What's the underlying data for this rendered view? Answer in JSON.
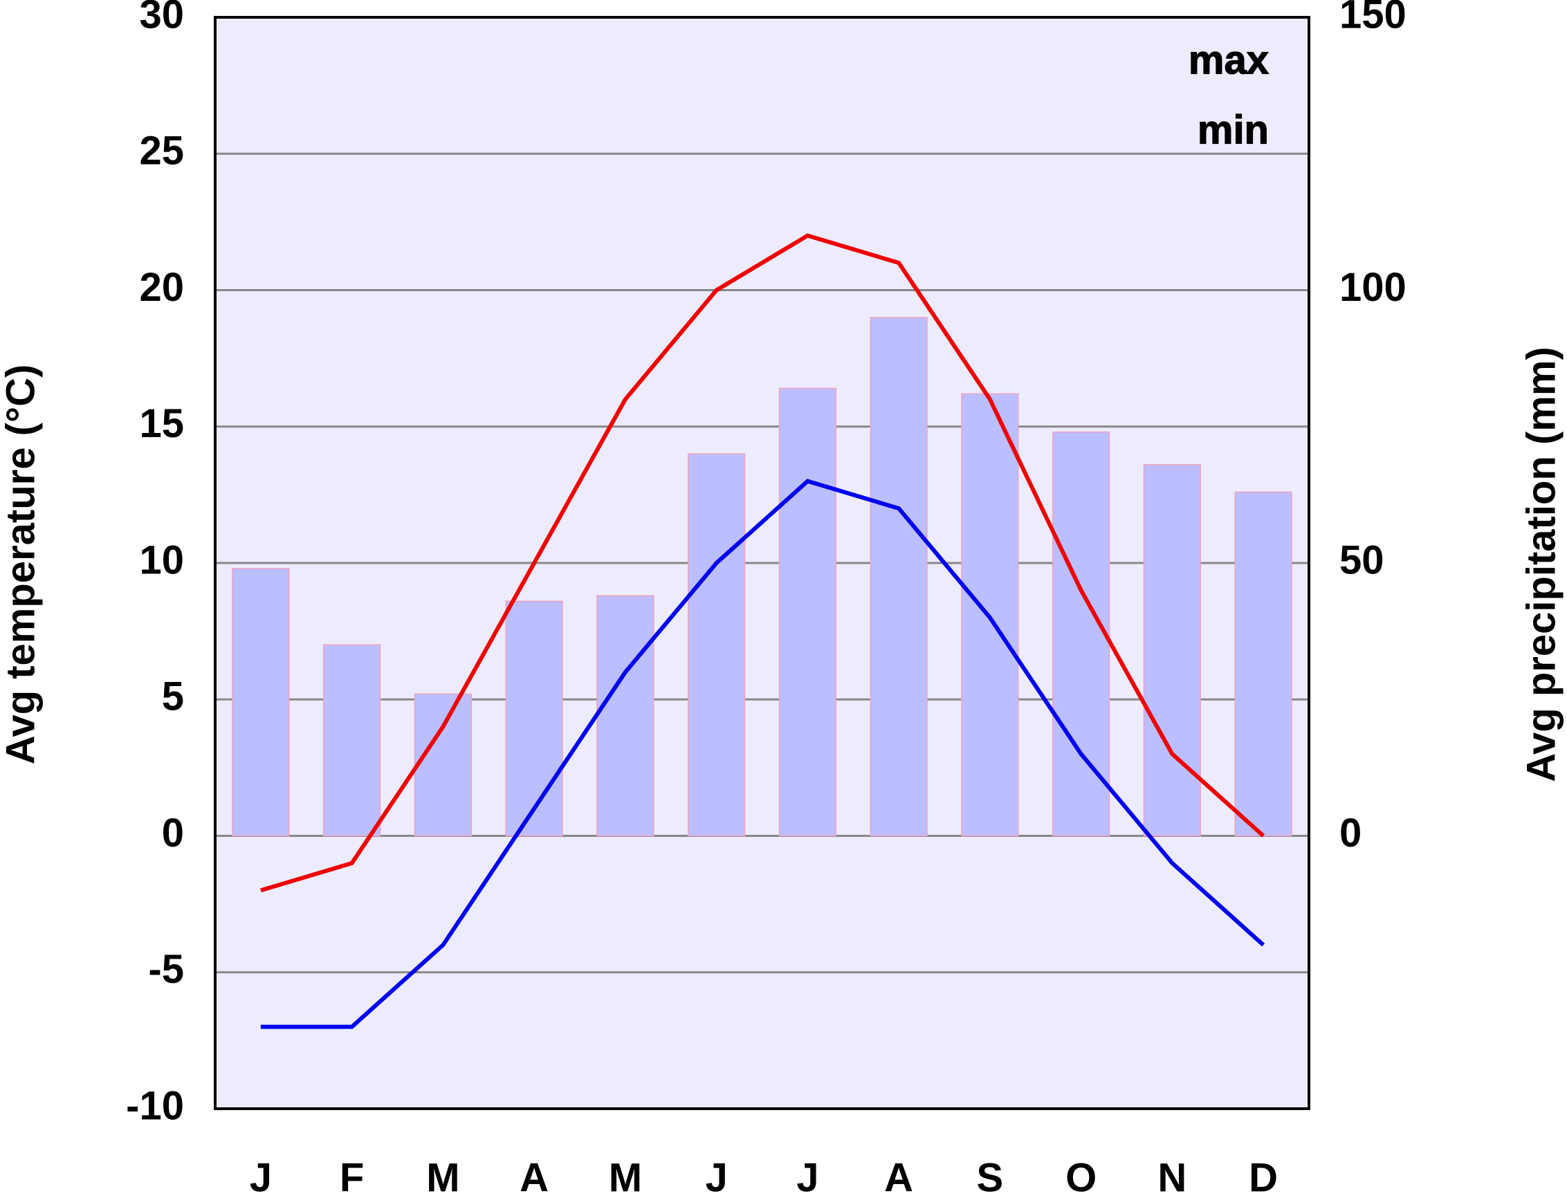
{
  "chart_data": {
    "type": "combo",
    "categories": [
      "J",
      "F",
      "M",
      "A",
      "M",
      "J",
      "J",
      "A",
      "S",
      "O",
      "N",
      "D"
    ],
    "bars": {
      "values": [
        49,
        35,
        26,
        43,
        44,
        70,
        82,
        95,
        81,
        74,
        68,
        63
      ],
      "color": "#bbbfff",
      "axis": "y2"
    },
    "series": [
      {
        "name": "max",
        "color": "#ee0000",
        "values": [
          -2,
          -1,
          4,
          10,
          16,
          20,
          22,
          21,
          16,
          9,
          3,
          0
        ]
      },
      {
        "name": "min",
        "color": "#0000ee",
        "values": [
          -7,
          -7,
          -4,
          1,
          6,
          10,
          13,
          12,
          8,
          3,
          -1,
          -4
        ]
      }
    ],
    "ylabel": "Avg temperature (°C)",
    "y2label": "Avg precipitation (mm)",
    "ylim": [
      -10,
      30
    ],
    "yticks": [
      -10,
      -5,
      0,
      5,
      10,
      15,
      20,
      25,
      30
    ],
    "y2lim": [
      -50,
      150
    ],
    "y2ticks": [
      0,
      50,
      100,
      150
    ],
    "grid": true,
    "legend": "upper right"
  }
}
